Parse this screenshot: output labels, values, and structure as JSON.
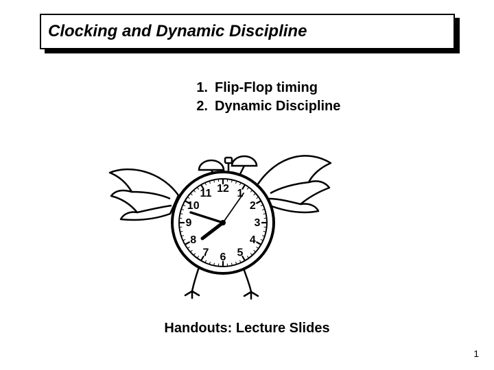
{
  "title": "Clocking and Dynamic Discipline",
  "outline": {
    "items": [
      {
        "num": "1.",
        "label": "Flip-Flop timing"
      },
      {
        "num": "2.",
        "label": "Dynamic Discipline"
      }
    ]
  },
  "footer": "Handouts: Lecture Slides",
  "page_number": "1",
  "clock": {
    "numbers": [
      "12",
      "1",
      "2",
      "3",
      "4",
      "5",
      "6",
      "7",
      "8",
      "9",
      "10",
      "11"
    ],
    "face_bg": "#ffffff",
    "stroke": "#000000",
    "tick_color": "#000000",
    "hand_color": "#000000",
    "number_fontsize": 16
  },
  "style": {
    "bg": "#ffffff",
    "text_color": "#000000",
    "title_fontsize": 24,
    "outline_fontsize": 20,
    "footer_fontsize": 20
  }
}
